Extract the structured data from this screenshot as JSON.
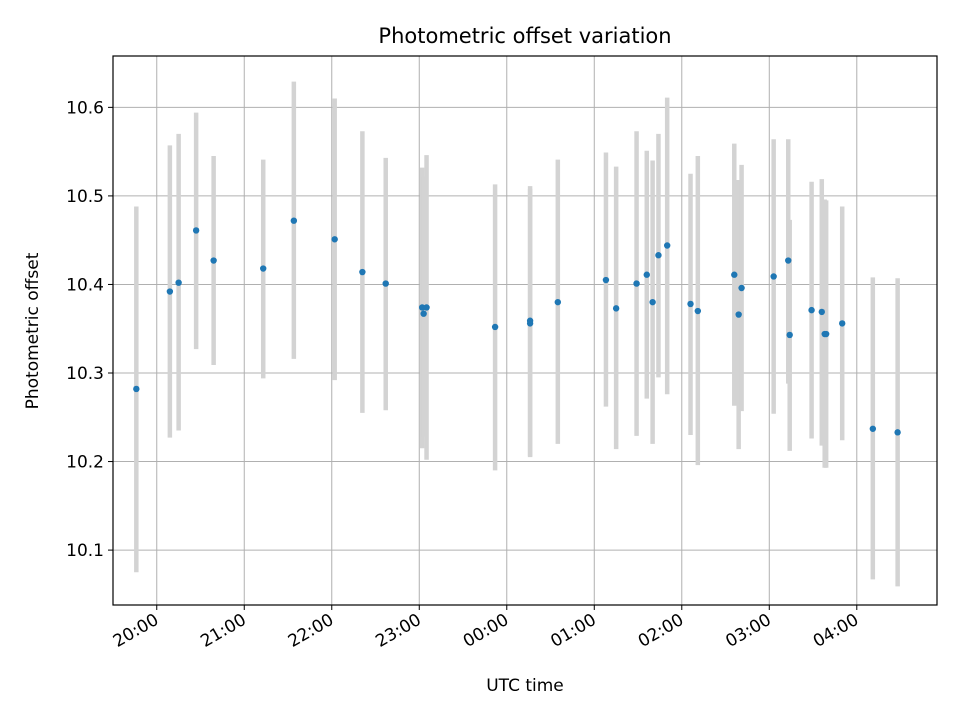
{
  "chart_data": {
    "type": "scatter",
    "title": "Photometric offset variation",
    "xlabel": "UTC time",
    "ylabel": "Photometric offset",
    "grid": true,
    "error_bars": true,
    "colors": {
      "marker": "#1f77b4",
      "errorbar": "#d3d3d3",
      "grid": "#b0b0b0",
      "axes": "#000000"
    },
    "xlim": [
      "2000-01-01T19:30",
      "2000-01-02T04:55"
    ],
    "ylim": [
      10.038,
      10.658
    ],
    "x_ticks": [
      {
        "t": "2000-01-01T20:00",
        "label": "20:00"
      },
      {
        "t": "2000-01-01T21:00",
        "label": "21:00"
      },
      {
        "t": "2000-01-01T22:00",
        "label": "22:00"
      },
      {
        "t": "2000-01-01T23:00",
        "label": "23:00"
      },
      {
        "t": "2000-01-02T00:00",
        "label": "00:00"
      },
      {
        "t": "2000-01-02T01:00",
        "label": "01:00"
      },
      {
        "t": "2000-01-02T02:00",
        "label": "02:00"
      },
      {
        "t": "2000-01-02T03:00",
        "label": "03:00"
      },
      {
        "t": "2000-01-02T04:00",
        "label": "04:00"
      }
    ],
    "y_ticks": [
      "10.1",
      "10.2",
      "10.3",
      "10.4",
      "10.5",
      "10.6"
    ],
    "points": [
      {
        "t": "2000-01-01T19:46",
        "y": 10.282,
        "lo": 10.075,
        "hi": 10.488
      },
      {
        "t": "2000-01-01T20:09",
        "y": 10.392,
        "lo": 10.227,
        "hi": 10.557
      },
      {
        "t": "2000-01-01T20:15",
        "y": 10.402,
        "lo": 10.235,
        "hi": 10.57
      },
      {
        "t": "2000-01-01T20:27",
        "y": 10.461,
        "lo": 10.327,
        "hi": 10.594
      },
      {
        "t": "2000-01-01T20:39",
        "y": 10.427,
        "lo": 10.309,
        "hi": 10.545
      },
      {
        "t": "2000-01-01T21:13",
        "y": 10.418,
        "lo": 10.294,
        "hi": 10.541
      },
      {
        "t": "2000-01-01T21:34",
        "y": 10.472,
        "lo": 10.316,
        "hi": 10.629
      },
      {
        "t": "2000-01-01T22:02",
        "y": 10.451,
        "lo": 10.292,
        "hi": 10.61
      },
      {
        "t": "2000-01-01T22:21",
        "y": 10.414,
        "lo": 10.255,
        "hi": 10.573
      },
      {
        "t": "2000-01-01T22:37",
        "y": 10.401,
        "lo": 10.258,
        "hi": 10.543
      },
      {
        "t": "2000-01-01T23:02",
        "y": 10.374,
        "lo": 10.215,
        "hi": 10.532
      },
      {
        "t": "2000-01-01T23:03",
        "y": 10.367,
        "lo": 10.228,
        "hi": 10.522
      },
      {
        "t": "2000-01-01T23:05",
        "y": 10.374,
        "lo": 10.202,
        "hi": 10.546
      },
      {
        "t": "2000-01-01T23:52",
        "y": 10.352,
        "lo": 10.19,
        "hi": 10.513
      },
      {
        "t": "2000-01-02T00:16",
        "y": 10.359,
        "lo": 10.206,
        "hi": 10.511
      },
      {
        "t": "2000-01-02T00:16",
        "y": 10.356,
        "lo": 10.205,
        "hi": 10.508
      },
      {
        "t": "2000-01-02T00:35",
        "y": 10.38,
        "lo": 10.22,
        "hi": 10.541
      },
      {
        "t": "2000-01-02T01:08",
        "y": 10.405,
        "lo": 10.262,
        "hi": 10.549
      },
      {
        "t": "2000-01-02T01:15",
        "y": 10.373,
        "lo": 10.214,
        "hi": 10.533
      },
      {
        "t": "2000-01-02T01:29",
        "y": 10.401,
        "lo": 10.229,
        "hi": 10.573
      },
      {
        "t": "2000-01-02T01:36",
        "y": 10.411,
        "lo": 10.271,
        "hi": 10.551
      },
      {
        "t": "2000-01-02T01:40",
        "y": 10.38,
        "lo": 10.22,
        "hi": 10.54
      },
      {
        "t": "2000-01-02T01:44",
        "y": 10.433,
        "lo": 10.295,
        "hi": 10.57
      },
      {
        "t": "2000-01-02T01:50",
        "y": 10.444,
        "lo": 10.276,
        "hi": 10.611
      },
      {
        "t": "2000-01-02T02:06",
        "y": 10.378,
        "lo": 10.23,
        "hi": 10.525
      },
      {
        "t": "2000-01-02T02:11",
        "y": 10.37,
        "lo": 10.196,
        "hi": 10.545
      },
      {
        "t": "2000-01-02T02:36",
        "y": 10.411,
        "lo": 10.263,
        "hi": 10.559
      },
      {
        "t": "2000-01-02T02:39",
        "y": 10.366,
        "lo": 10.214,
        "hi": 10.518
      },
      {
        "t": "2000-01-02T02:41",
        "y": 10.396,
        "lo": 10.257,
        "hi": 10.535
      },
      {
        "t": "2000-01-02T03:03",
        "y": 10.409,
        "lo": 10.254,
        "hi": 10.564
      },
      {
        "t": "2000-01-02T03:13",
        "y": 10.427,
        "lo": 10.288,
        "hi": 10.564
      },
      {
        "t": "2000-01-02T03:14",
        "y": 10.343,
        "lo": 10.212,
        "hi": 10.473
      },
      {
        "t": "2000-01-02T03:29",
        "y": 10.371,
        "lo": 10.226,
        "hi": 10.516
      },
      {
        "t": "2000-01-02T03:36",
        "y": 10.369,
        "lo": 10.218,
        "hi": 10.519
      },
      {
        "t": "2000-01-02T03:38",
        "y": 10.344,
        "lo": 10.193,
        "hi": 10.496
      },
      {
        "t": "2000-01-02T03:39",
        "y": 10.344,
        "lo": 10.193,
        "hi": 10.495
      },
      {
        "t": "2000-01-02T03:50",
        "y": 10.356,
        "lo": 10.224,
        "hi": 10.488
      },
      {
        "t": "2000-01-02T04:11",
        "y": 10.237,
        "lo": 10.067,
        "hi": 10.408
      },
      {
        "t": "2000-01-02T04:28",
        "y": 10.233,
        "lo": 10.059,
        "hi": 10.407
      }
    ]
  }
}
